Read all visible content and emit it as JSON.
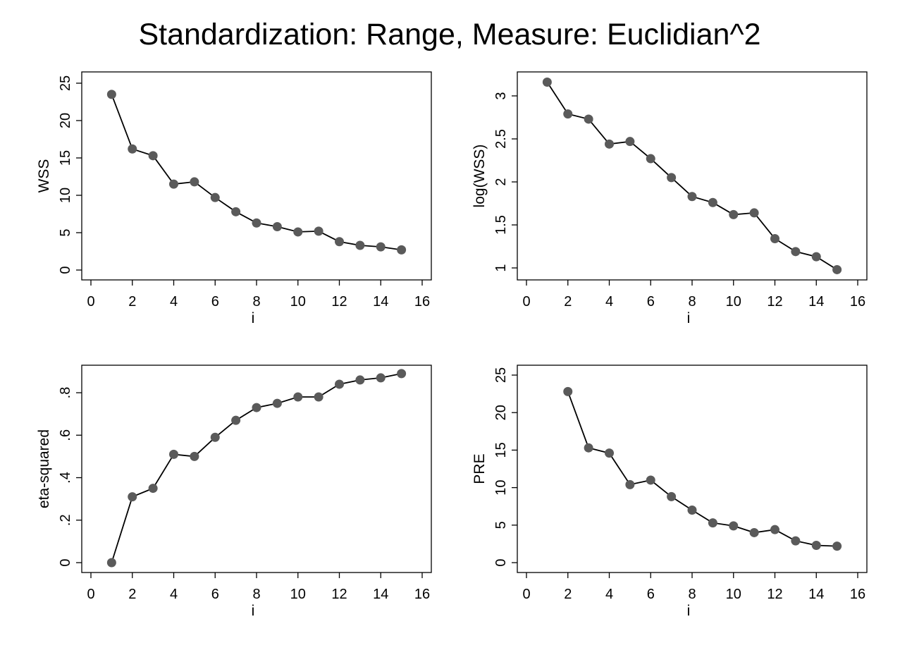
{
  "title": "Standardization: Range, Measure: Euclidian^2",
  "colors": {
    "marker": "#5a5a5a",
    "line": "#000000",
    "frame": "#000000",
    "background": "#ffffff"
  },
  "chart_data": [
    {
      "type": "line",
      "position": "top-left",
      "xlabel": "i",
      "ylabel": "WSS",
      "xlim": [
        0,
        16
      ],
      "ylim": [
        0,
        25
      ],
      "xticks": [
        "0",
        "2",
        "4",
        "6",
        "8",
        "10",
        "12",
        "14",
        "16"
      ],
      "yticks": [
        "0",
        "5",
        "10",
        "15",
        "20",
        "25"
      ],
      "grid": false,
      "series": [
        {
          "x": [
            1,
            2,
            3,
            4,
            5,
            6,
            7,
            8,
            9,
            10,
            11,
            12,
            13,
            14,
            15
          ],
          "y": [
            23.5,
            16.2,
            15.3,
            11.5,
            11.8,
            9.7,
            7.8,
            6.3,
            5.8,
            5.1,
            5.2,
            3.8,
            3.3,
            3.1,
            2.7
          ]
        }
      ]
    },
    {
      "type": "line",
      "position": "top-right",
      "xlabel": "i",
      "ylabel": "log(WSS)",
      "xlim": [
        0,
        16
      ],
      "ylim": [
        1,
        3
      ],
      "xticks": [
        "0",
        "2",
        "4",
        "6",
        "8",
        "10",
        "12",
        "14",
        "16"
      ],
      "yticks": [
        "1",
        "1.5",
        "2",
        "2.5",
        "3"
      ],
      "grid": false,
      "series": [
        {
          "x": [
            1,
            2,
            3,
            4,
            5,
            6,
            7,
            8,
            9,
            10,
            11,
            12,
            13,
            14,
            15
          ],
          "y": [
            3.16,
            2.79,
            2.73,
            2.44,
            2.47,
            2.27,
            2.05,
            1.83,
            1.76,
            1.62,
            1.64,
            1.34,
            1.19,
            1.13,
            0.98
          ]
        }
      ]
    },
    {
      "type": "line",
      "position": "bottom-left",
      "xlabel": "i",
      "ylabel": "eta-squared",
      "xlim": [
        0,
        16
      ],
      "ylim": [
        0,
        0.8
      ],
      "xticks": [
        "0",
        "2",
        "4",
        "6",
        "8",
        "10",
        "12",
        "14",
        "16"
      ],
      "yticks": [
        "0",
        ".2",
        ".4",
        ".6",
        ".8"
      ],
      "grid": false,
      "series": [
        {
          "x": [
            1,
            2,
            3,
            4,
            5,
            6,
            7,
            8,
            9,
            10,
            11,
            12,
            13,
            14,
            15
          ],
          "y": [
            0,
            0.31,
            0.35,
            0.51,
            0.5,
            0.59,
            0.67,
            0.73,
            0.75,
            0.78,
            0.78,
            0.84,
            0.86,
            0.87,
            0.89
          ]
        }
      ]
    },
    {
      "type": "line",
      "position": "bottom-right",
      "xlabel": "i",
      "ylabel": "PRE",
      "xlim": [
        0,
        16
      ],
      "ylim": [
        0,
        25
      ],
      "xticks": [
        "0",
        "2",
        "4",
        "6",
        "8",
        "10",
        "12",
        "14",
        "16"
      ],
      "yticks": [
        "0",
        "5",
        "10",
        "15",
        "20",
        "25"
      ],
      "grid": false,
      "series": [
        {
          "x": [
            2,
            3,
            4,
            5,
            6,
            7,
            8,
            9,
            10,
            11,
            12,
            13,
            14,
            15
          ],
          "y": [
            22.8,
            15.3,
            14.6,
            10.4,
            11.0,
            8.8,
            7.0,
            5.3,
            4.9,
            4.0,
            4.4,
            2.9,
            2.3,
            2.2
          ]
        }
      ]
    }
  ]
}
